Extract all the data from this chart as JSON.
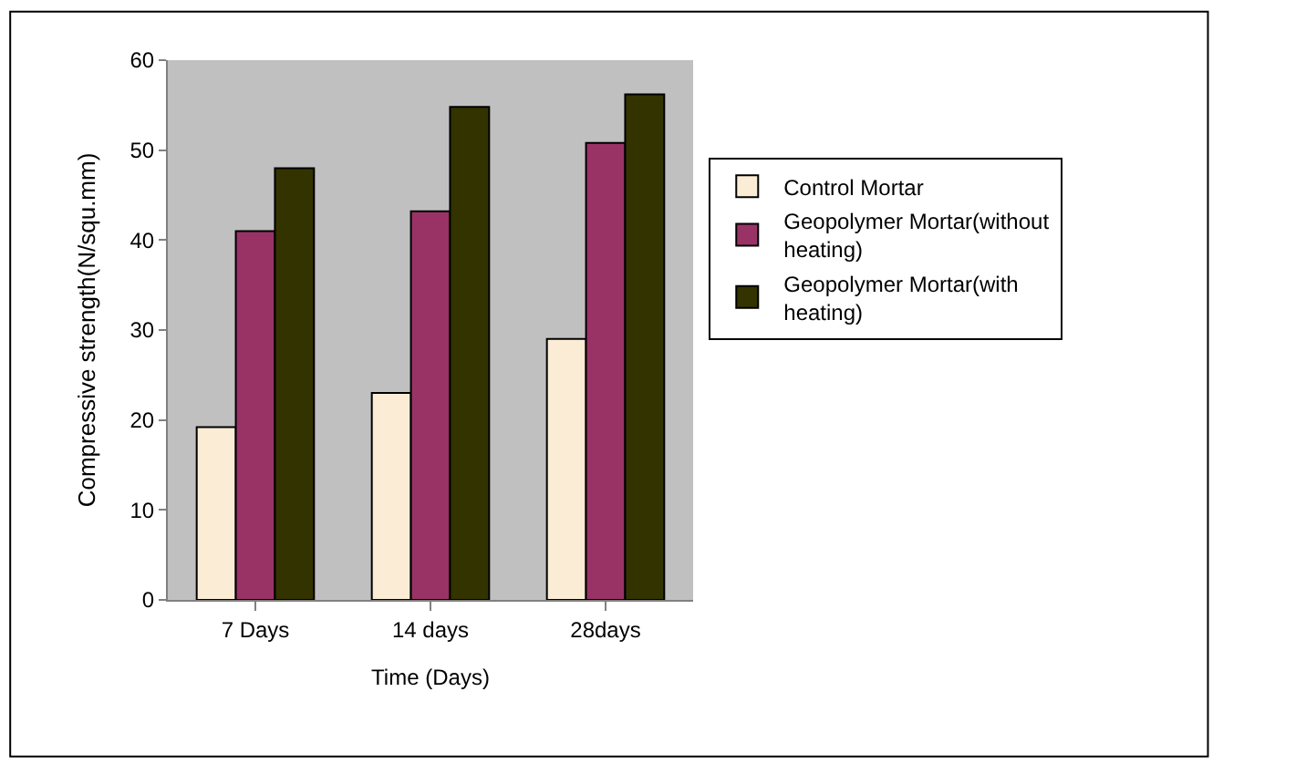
{
  "chart_data": {
    "type": "bar",
    "xlabel": "Time (Days)",
    "ylabel": "Compressive strength(N/squ.mm)",
    "categories": [
      "7 Days",
      "14 days",
      "28days"
    ],
    "series": [
      {
        "name": "Control Mortar",
        "color": "#fbedd5",
        "values": [
          19.2,
          23,
          29
        ]
      },
      {
        "name": "Geopolymer Mortar(without heating)",
        "color": "#993366",
        "values": [
          41,
          43.2,
          50.8
        ]
      },
      {
        "name": "Geopolymer Mortar(with heating)",
        "color": "#333300",
        "values": [
          48,
          54.8,
          56.2
        ]
      }
    ],
    "ylim": [
      0,
      60
    ],
    "yticks": [
      0,
      10,
      20,
      30,
      40,
      50,
      60
    ],
    "grid": false,
    "legend": "right"
  }
}
